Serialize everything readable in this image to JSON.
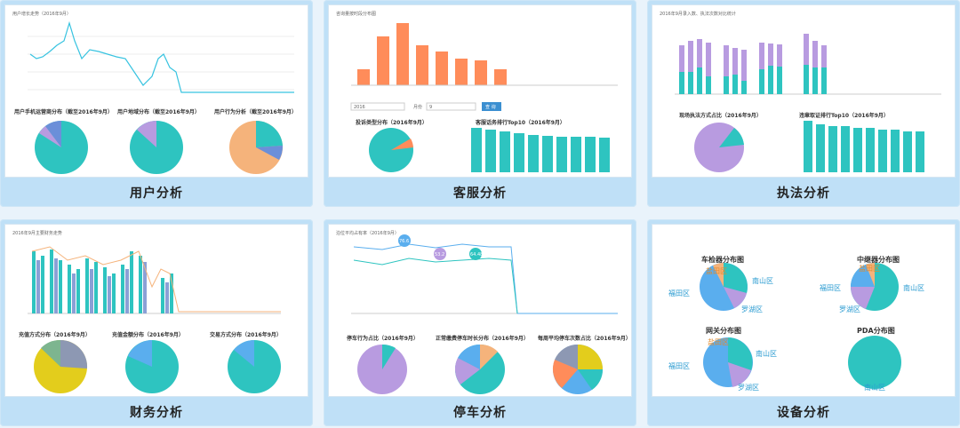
{
  "colors": {
    "teal": "#2ec4c0",
    "purple": "#b89be0",
    "orange": "#ff8c5a",
    "blue": "#5aaeee",
    "peach": "#f5b37b",
    "gray": "#8d98b3",
    "yellow": "#e3cd1c",
    "green": "#7db58f"
  },
  "cards": [
    {
      "label": "用户分析",
      "pies": [
        {
          "title": "用户手机运营商分布（截至2016年9月）"
        },
        {
          "title": "用户地域分布（截至2016年9月）"
        },
        {
          "title": "用户行为分析（截至2016年9月）"
        }
      ]
    },
    {
      "label": "客服分析",
      "chart_title": "咨询量按时段分布图",
      "controls": {
        "year": "2016",
        "month_label": "月份",
        "filter": "9",
        "query_button": "查 询"
      },
      "pie_title": "投诉类型分布（2016年9月）",
      "bar_title": "客服话务排行Top10（2016年9月）"
    },
    {
      "label": "执法分析",
      "chart_title": "2016年9月录入数、执法次数对比统计",
      "pie_title": "现场执法方式占比（2016年9月）",
      "bar_title": "违章取证排行Top10（2016年9月）"
    },
    {
      "label": "财务分析",
      "chart_title": "2016年9月主要财务走势",
      "pies": [
        {
          "title": "充值方式分布（2016年9月）"
        },
        {
          "title": "充值金额分布（2016年9月）"
        },
        {
          "title": "交易方式分布（2016年9月）"
        }
      ]
    },
    {
      "label": "停车分析",
      "chart_title": "泊位平均占有率（2016年9月）",
      "markers": [
        "76.6",
        "53.2",
        "64.48"
      ],
      "pies": [
        {
          "title": "停车行为占比（2016年9月）"
        },
        {
          "title": "正常缴费停车时长分布（2016年9月）"
        },
        {
          "title": "每周平均停车次数占比（2016年9月）"
        }
      ]
    },
    {
      "label": "设备分析",
      "pies": [
        {
          "title": "车检器分布图",
          "labels": [
            "福田区",
            "南山区",
            "罗湖区",
            "盐田区"
          ]
        },
        {
          "title": "中继器分布图",
          "labels": [
            "福田区",
            "南山区",
            "罗湖区",
            "盐田区"
          ]
        },
        {
          "title": "网关分布图",
          "labels": [
            "福田区",
            "南山区",
            "罗湖区",
            "盐田区"
          ]
        },
        {
          "title": "PDA分布图",
          "labels": [
            "南山区"
          ]
        }
      ]
    }
  ]
}
